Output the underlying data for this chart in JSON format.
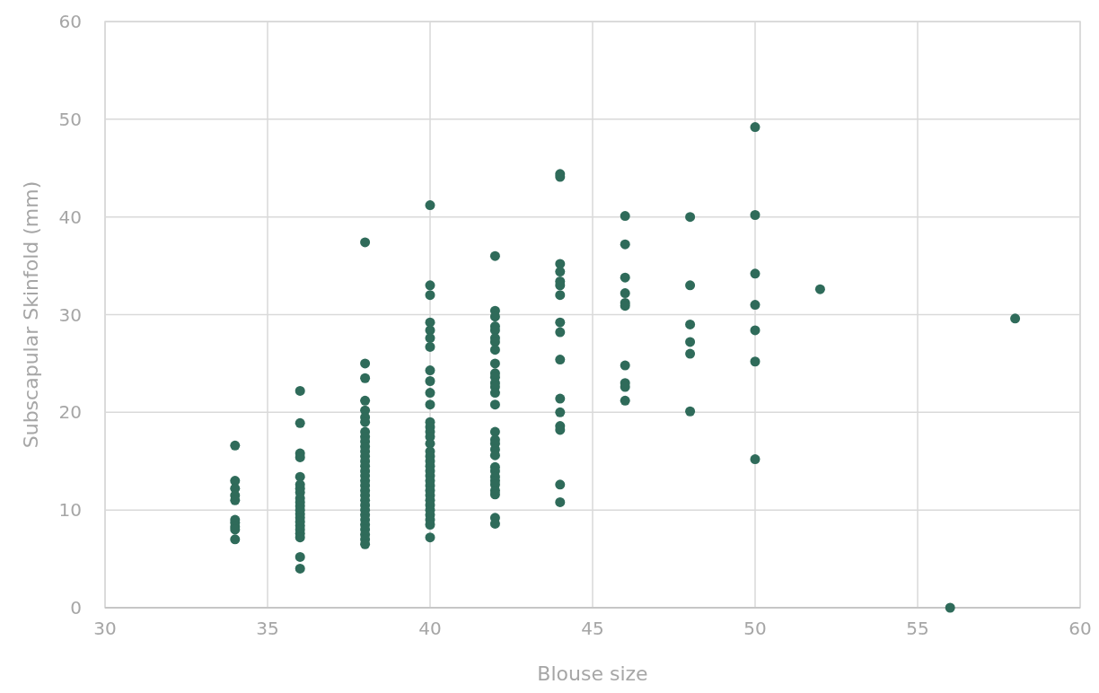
{
  "chart_data": {
    "type": "scatter",
    "xlabel": "Blouse size",
    "ylabel": "Subscapular Skinfold (mm)",
    "xlim": [
      30,
      60
    ],
    "xticks": [
      30,
      35,
      40,
      45,
      50,
      55,
      60
    ],
    "ylim": [
      0,
      60
    ],
    "yticks": [
      0,
      10,
      20,
      30,
      40,
      50,
      60
    ],
    "grid": true,
    "marker": "circle",
    "series": [
      {
        "color": "#2f6b5a",
        "x": [
          34,
          34,
          34,
          34,
          34,
          34,
          34,
          34,
          34,
          34,
          36,
          36,
          36,
          36,
          36,
          36,
          36,
          36,
          36,
          36,
          36,
          36,
          36,
          36,
          36,
          36,
          36,
          36,
          36,
          36,
          36,
          38,
          38,
          38,
          38,
          38,
          38,
          38,
          38,
          38,
          38,
          38,
          38,
          38,
          38,
          38,
          38,
          38,
          38,
          38,
          38,
          38,
          38,
          38,
          38,
          38,
          38,
          38,
          38,
          38,
          38,
          38,
          40,
          40,
          40,
          40,
          40,
          40,
          40,
          40,
          40,
          40,
          40,
          40,
          40,
          40,
          40,
          40,
          40,
          40,
          40,
          40,
          40,
          40,
          40,
          40,
          40,
          40,
          40,
          40,
          40,
          40,
          40,
          40,
          40,
          42,
          42,
          42,
          42,
          42,
          42,
          42,
          42,
          42,
          42,
          42,
          42,
          42,
          42,
          42,
          42,
          42,
          42,
          42,
          42,
          42,
          42,
          42,
          42,
          42,
          42,
          42,
          42,
          42,
          44,
          44,
          44,
          44,
          44,
          44,
          44,
          44,
          44,
          44,
          44,
          44,
          44,
          44,
          44,
          44,
          46,
          46,
          46,
          46,
          46,
          46,
          46,
          46,
          46,
          46,
          48,
          48,
          48,
          48,
          48,
          48,
          50,
          50,
          50,
          50,
          50,
          50,
          50,
          52,
          56,
          58
        ],
        "values": [
          16.6,
          13,
          12.2,
          11.5,
          11,
          9,
          8.7,
          8.3,
          8,
          7,
          22.2,
          18.9,
          15.8,
          15.4,
          13.4,
          12.6,
          12.2,
          11.8,
          11.2,
          10.8,
          10.4,
          10,
          9.6,
          9.2,
          8.8,
          8.4,
          8,
          7.6,
          7.2,
          5.2,
          4,
          37.4,
          25,
          23.5,
          21.2,
          20.2,
          19.5,
          19,
          18,
          17.5,
          17,
          16.5,
          16,
          15.5,
          15,
          14.5,
          14,
          13.5,
          13,
          12.5,
          12,
          11.5,
          11,
          10.5,
          10,
          9.5,
          9,
          8.5,
          8,
          7.5,
          7,
          6.5,
          41.2,
          33,
          32,
          29.2,
          28.4,
          27.6,
          26.7,
          24.3,
          23.2,
          22,
          20.8,
          19,
          18.5,
          18,
          17.5,
          16.8,
          16,
          15.5,
          15,
          14.5,
          14,
          13.5,
          13,
          12.5,
          12,
          11.5,
          11,
          10.5,
          10,
          9.5,
          9,
          8.5,
          7.2,
          36,
          30.4,
          29.8,
          28.8,
          28.4,
          27.6,
          27.2,
          26.4,
          25,
          24,
          23.6,
          23,
          22.6,
          22,
          20.8,
          18,
          17.2,
          16.8,
          16.2,
          15.6,
          14.4,
          14,
          13.4,
          13,
          12.6,
          12,
          11.6,
          9.2,
          8.6,
          44.4,
          44.1,
          35.2,
          34.4,
          33.4,
          33,
          32,
          29.2,
          28.2,
          25.4,
          21.4,
          20,
          18.6,
          18.2,
          12.6,
          10.8,
          40.1,
          37.2,
          33.8,
          32.2,
          31.2,
          30.9,
          24.8,
          23,
          22.6,
          21.2,
          40,
          33,
          29,
          27.2,
          26,
          20.1,
          49.2,
          40.2,
          34.2,
          31,
          28.4,
          25.2,
          15.2,
          32.6,
          0,
          29.6
        ]
      }
    ]
  }
}
